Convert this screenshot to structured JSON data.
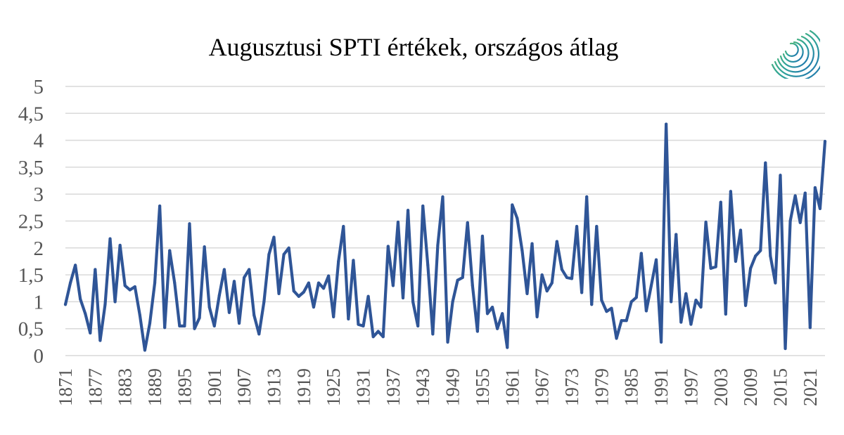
{
  "chart_data": {
    "type": "line",
    "title": "Augusztusi SPTI értékek, országos átlag",
    "xlabel": "",
    "ylabel": "",
    "ylim": [
      0,
      5
    ],
    "y_ticks": [
      "0",
      "0,5",
      "1",
      "1,5",
      "2",
      "2,5",
      "3",
      "3,5",
      "4",
      "4,5",
      "5"
    ],
    "x_tick_labels": [
      "1871",
      "1877",
      "1883",
      "1889",
      "1895",
      "1901",
      "1907",
      "1913",
      "1919",
      "1925",
      "1931",
      "1937",
      "1943",
      "1949",
      "1955",
      "1961",
      "1967",
      "1973",
      "1979",
      "1985",
      "1991",
      "1997",
      "2003",
      "2009",
      "2015",
      "2021"
    ],
    "grid": true,
    "legend": "none",
    "x_start": 1871,
    "x_end": 2024,
    "series": [
      {
        "color": "#2f5597",
        "values": [
          0.95,
          1.35,
          1.68,
          1.05,
          0.78,
          0.42,
          1.6,
          0.28,
          0.95,
          2.17,
          1.0,
          2.05,
          1.3,
          1.22,
          1.28,
          0.75,
          0.1,
          0.6,
          1.35,
          2.78,
          0.52,
          1.95,
          1.35,
          0.55,
          0.55,
          2.45,
          0.5,
          0.7,
          2.02,
          0.9,
          0.55,
          1.12,
          1.6,
          0.8,
          1.38,
          0.6,
          1.45,
          1.6,
          0.75,
          0.4,
          1.0,
          1.88,
          2.2,
          1.15,
          1.88,
          2.0,
          1.2,
          1.1,
          1.18,
          1.35,
          0.9,
          1.35,
          1.25,
          1.48,
          0.72,
          1.75,
          2.4,
          0.68,
          1.77,
          0.58,
          0.55,
          1.1,
          0.35,
          0.45,
          0.35,
          2.03,
          1.3,
          2.48,
          1.07,
          2.7,
          1.0,
          0.55,
          2.78,
          1.68,
          0.4,
          2.05,
          2.95,
          0.25,
          1.0,
          1.4,
          1.45,
          2.47,
          1.3,
          0.45,
          2.22,
          0.78,
          0.9,
          0.5,
          0.78,
          0.15,
          2.8,
          2.55,
          1.95,
          1.15,
          2.08,
          0.72,
          1.5,
          1.2,
          1.35,
          2.12,
          1.6,
          1.45,
          1.43,
          2.4,
          1.17,
          2.95,
          0.95,
          2.4,
          1.03,
          0.82,
          0.88,
          0.32,
          0.65,
          0.65,
          1.0,
          1.08,
          1.9,
          0.83,
          1.3,
          1.78,
          0.25,
          4.3,
          1.0,
          2.25,
          0.62,
          1.15,
          0.58,
          1.03,
          0.9,
          2.48,
          1.62,
          1.65,
          2.85,
          0.77,
          3.05,
          1.75,
          2.33,
          0.93,
          1.62,
          1.85,
          1.95,
          3.58,
          1.85,
          1.35,
          3.35,
          0.13,
          2.5,
          2.97,
          2.47,
          3.02,
          0.52,
          3.12,
          2.73,
          3.98
        ]
      }
    ]
  }
}
